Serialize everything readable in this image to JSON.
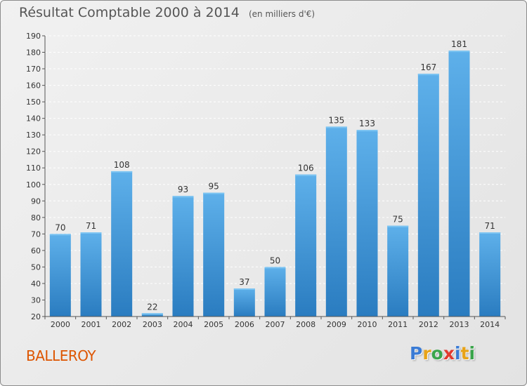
{
  "title": "Résultat Comptable 2000 à 2014",
  "unit_note": "(en milliers d'€)",
  "place": "BALLEROY",
  "brand": {
    "letters": [
      "P",
      "r",
      "o",
      "x",
      "i",
      "t",
      "i"
    ],
    "colors": [
      "#3a7bd5",
      "#e8a317",
      "#3aa54b",
      "#e23a2e",
      "#3a7bd5",
      "#e8a317",
      "#3aa54b"
    ]
  },
  "colors": {
    "bar_top": "#5eb0ea",
    "bar_bottom": "#2a7cc0",
    "axis": "#555555",
    "grid": "#ffffff",
    "place_name": "#dd5500"
  },
  "chart_data": {
    "type": "bar",
    "categories": [
      "2000",
      "2001",
      "2002",
      "2003",
      "2004",
      "2005",
      "2006",
      "2007",
      "2008",
      "2009",
      "2010",
      "2011",
      "2012",
      "2013",
      "2014"
    ],
    "values": [
      70,
      71,
      108,
      22,
      93,
      95,
      37,
      50,
      106,
      135,
      133,
      75,
      167,
      181,
      71
    ],
    "data_labels": [
      "70",
      "71",
      "108",
      "22",
      "93",
      "95",
      "37",
      "50",
      "106",
      "135",
      "133",
      "75",
      "167",
      "181",
      "71"
    ],
    "ylim": [
      20,
      190
    ],
    "yticks": [
      20,
      30,
      40,
      50,
      60,
      70,
      80,
      90,
      100,
      110,
      120,
      130,
      140,
      150,
      160,
      170,
      180,
      190
    ],
    "grid": true,
    "title": "Résultat Comptable 2000 à 2014",
    "xlabel": "",
    "ylabel": ""
  }
}
